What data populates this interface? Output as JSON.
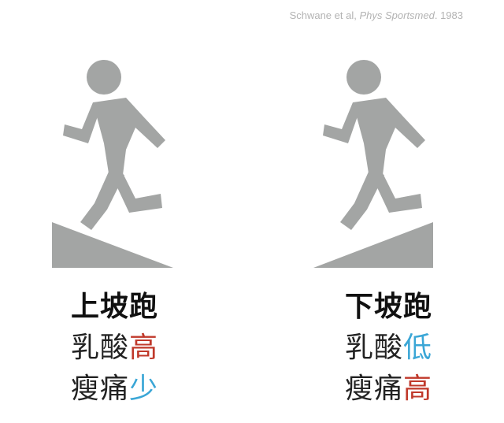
{
  "citation": {
    "authors": "Schwane et al,",
    "journal": "Phys Sportsmed",
    "year_suffix": ". 1983"
  },
  "colors": {
    "figure": "#a3a5a4",
    "high": "#c0392b",
    "low": "#3aa6d6",
    "text": "#222222"
  },
  "panels": [
    {
      "icon": "uphill-runner-icon",
      "title": "上坡跑",
      "lines": [
        {
          "prefix": "乳酸",
          "value": "高",
          "value_color": "#c0392b"
        },
        {
          "prefix": "瘦痛",
          "value": "少",
          "value_color": "#3aa6d6"
        }
      ]
    },
    {
      "icon": "downhill-runner-icon",
      "title": "下坡跑",
      "lines": [
        {
          "prefix": "乳酸",
          "value": "低",
          "value_color": "#3aa6d6"
        },
        {
          "prefix": "瘦痛",
          "value": "高",
          "value_color": "#c0392b"
        }
      ]
    }
  ]
}
